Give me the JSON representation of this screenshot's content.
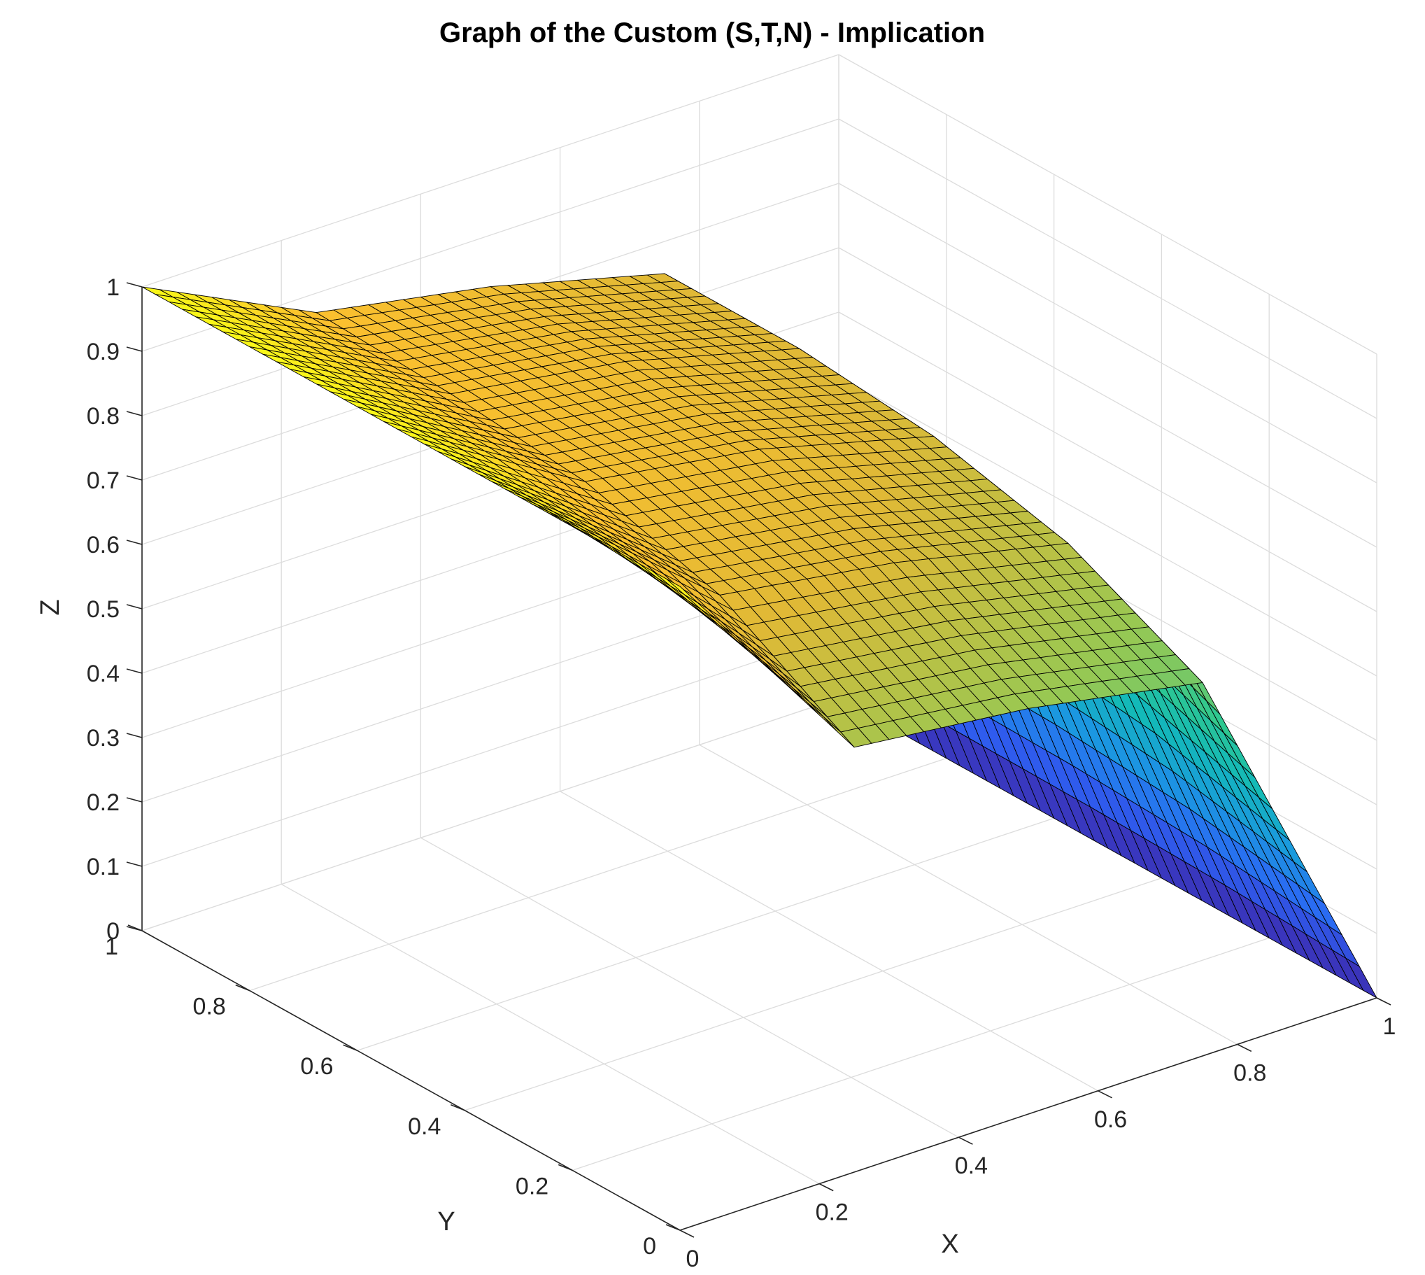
{
  "chart_data": {
    "type": "surface",
    "title": "Graph of the Custom (S,T,N) - Implication",
    "xlabel": "X",
    "ylabel": "Y",
    "zlabel": "Z",
    "xlim": [
      0,
      1
    ],
    "ylim": [
      0,
      1
    ],
    "zlim": [
      0,
      1
    ],
    "xticks": [
      0,
      0.2,
      0.4,
      0.6,
      0.8,
      1
    ],
    "xtick_labels": [
      "0",
      "0.2",
      "0.4",
      "0.6",
      "0.8",
      "1"
    ],
    "yticks": [
      0,
      0.2,
      0.4,
      0.6,
      0.8,
      1
    ],
    "ytick_labels": [
      "0",
      "0.2",
      "0.4",
      "0.6",
      "0.8",
      "1"
    ],
    "zticks": [
      0,
      0.1,
      0.2,
      0.3,
      0.4,
      0.5,
      0.6,
      0.7,
      0.8,
      0.9,
      1
    ],
    "ztick_labels": [
      "0",
      "0.1",
      "0.2",
      "0.3",
      "0.4",
      "0.5",
      "0.6",
      "0.7",
      "0.8",
      "0.9",
      "1"
    ],
    "grid": true,
    "colormap": "parula",
    "colormap_stops": [
      "#3e26a8",
      "#2d62f6",
      "#1b97e1",
      "#13b9b9",
      "#2fc88f",
      "#97c853",
      "#e0b936",
      "#fcc02e",
      "#f9f918"
    ],
    "surface_samples": {
      "x": [
        0,
        0.25,
        0.5,
        0.75,
        1
      ],
      "y": [
        0,
        0.25,
        0.5,
        0.75,
        1
      ],
      "z": [
        [
          1.0,
          1.0,
          1.0,
          1.0,
          1.0
        ],
        [
          0.66,
          0.78,
          0.84,
          0.86,
          0.87
        ],
        [
          0.63,
          0.74,
          0.8,
          0.82,
          0.82
        ],
        [
          0.58,
          0.68,
          0.73,
          0.75,
          0.75
        ],
        [
          0.0,
          0.0,
          0.0,
          0.0,
          0.0
        ]
      ]
    }
  }
}
